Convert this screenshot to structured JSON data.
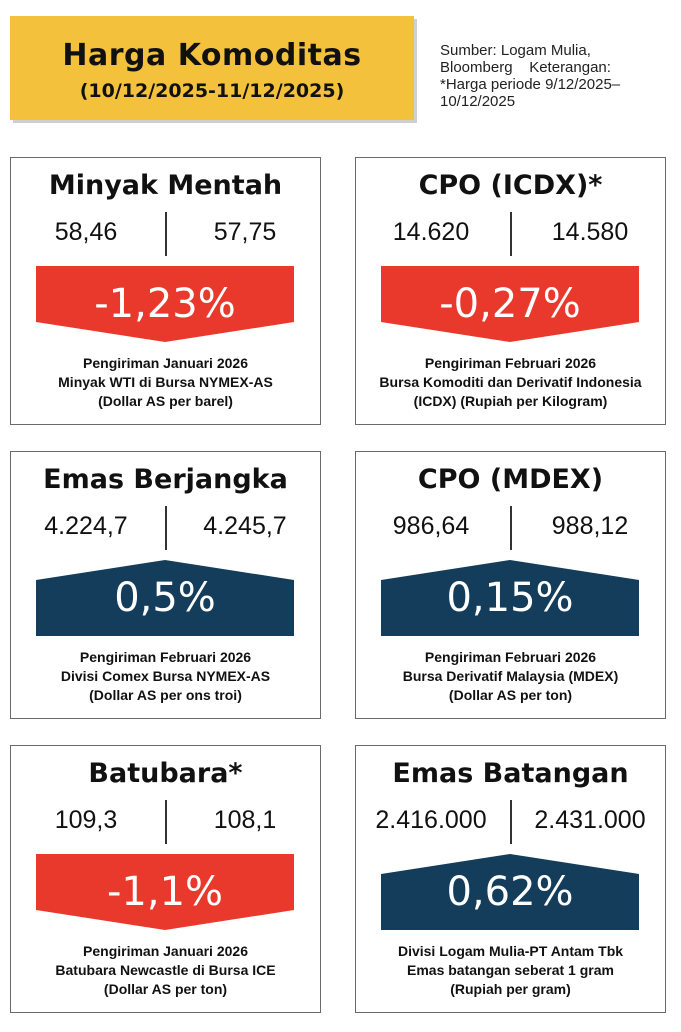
{
  "header": {
    "title": "Harga Komoditas",
    "period": "(10/12/2025-11/12/2025)"
  },
  "source": {
    "lines": [
      "Sumber: Logam Mulia,",
      "Bloomberg    Keterangan:",
      "*Harga periode 9/12/2025–",
      "10/12/2025"
    ]
  },
  "colors": {
    "down": "#e8392c",
    "up": "#143d5c",
    "header_bg": "#f4c13d"
  },
  "chart_data": {
    "type": "table",
    "cards": [
      {
        "title": "Minyak Mentah",
        "prev": "58,46",
        "curr": "57,75",
        "change": "-1,23%",
        "direction": "down",
        "note": [
          "Pengiriman Januari 2026",
          "Minyak WTI di Bursa NYMEX-AS",
          "(Dollar AS per barel)"
        ]
      },
      {
        "title": "CPO (ICDX)*",
        "prev": "14.620",
        "curr": "14.580",
        "change": "-0,27%",
        "direction": "down",
        "note": [
          "Pengiriman Februari 2026",
          "Bursa Komoditi dan Derivatif Indonesia",
          "(ICDX) (Rupiah per Kilogram)"
        ]
      },
      {
        "title": "Emas Berjangka",
        "prev": "4.224,7",
        "curr": "4.245,7",
        "change": "0,5%",
        "direction": "up",
        "note": [
          "Pengiriman Februari 2026",
          "Divisi Comex Bursa NYMEX-AS",
          "(Dollar AS per ons troi)"
        ]
      },
      {
        "title": "CPO (MDEX)",
        "prev": "986,64",
        "curr": "988,12",
        "change": "0,15%",
        "direction": "up",
        "note": [
          "Pengiriman Februari 2026",
          "Bursa Derivatif Malaysia (MDEX)",
          "(Dollar AS per ton)"
        ]
      },
      {
        "title": "Batubara*",
        "prev": "109,3",
        "curr": "108,1",
        "change": "-1,1%",
        "direction": "down",
        "note": [
          "Pengiriman Januari 2026",
          "Batubara Newcastle di Bursa ICE",
          "(Dollar AS per ton)"
        ]
      },
      {
        "title": "Emas Batangan",
        "prev": "2.416.000",
        "curr": "2.431.000",
        "change": "0,62%",
        "direction": "up",
        "note": [
          "Divisi Logam Mulia-PT Antam Tbk",
          "Emas batangan seberat 1 gram",
          "(Rupiah per gram)"
        ]
      }
    ]
  }
}
